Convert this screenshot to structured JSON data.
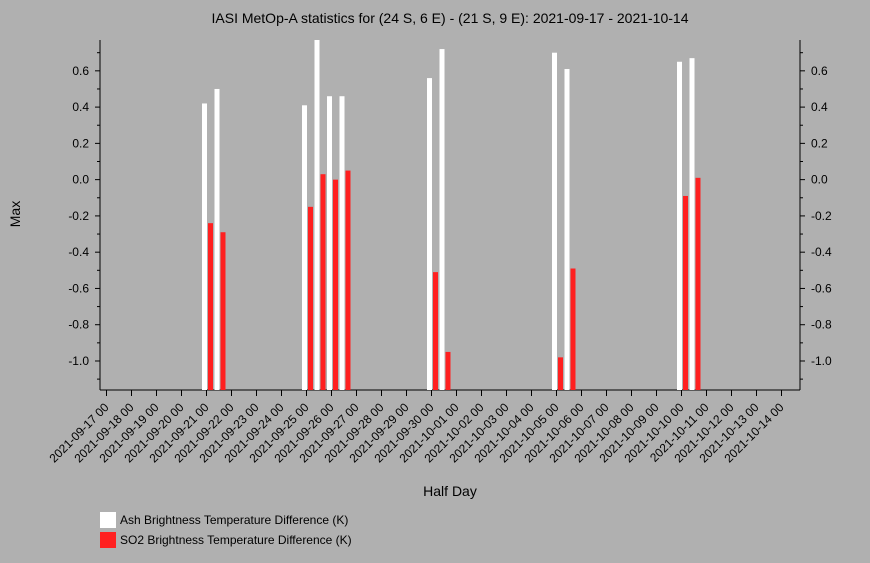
{
  "chart_data": {
    "type": "bar",
    "title": "IASI MetOp-A statistics for (24 S, 6 E) - (21 S, 9 E): 2021-09-17 - 2021-10-14",
    "xlabel": "Half Day",
    "ylabel": "Max",
    "ylim": [
      -1.16,
      0.77
    ],
    "yticks": [
      -1.0,
      -0.8,
      -0.6,
      -0.4,
      -0.2,
      0.0,
      0.2,
      0.4,
      0.6
    ],
    "ytick_labels": [
      "-1.0",
      "-0.8",
      "-0.6",
      "-0.4",
      "-0.2",
      "0.0",
      "0.2",
      "0.4",
      "0.6"
    ],
    "grid": false,
    "legend_position": "bottom-left",
    "categories": [
      "2021-09-17 00",
      "2021-09-18 00",
      "2021-09-19 00",
      "2021-09-20 00",
      "2021-09-21 00",
      "2021-09-22 00",
      "2021-09-23 00",
      "2021-09-24 00",
      "2021-09-25 00",
      "2021-09-26 00",
      "2021-09-27 00",
      "2021-09-28 00",
      "2021-09-29 00",
      "2021-09-30 00",
      "2021-10-01 00",
      "2021-10-02 00",
      "2021-10-03 00",
      "2021-10-04 00",
      "2021-10-05 00",
      "2021-10-06 00",
      "2021-10-07 00",
      "2021-10-08 00",
      "2021-10-09 00",
      "2021-10-10 00",
      "2021-10-11 00",
      "2021-10-12 00",
      "2021-10-13 00",
      "2021-10-14 00"
    ],
    "series": [
      {
        "name": "Ash Brightness Temperature Difference (K)",
        "color": "#ffffff",
        "points": [
          {
            "x": "2021-09-21 00",
            "y": 0.42
          },
          {
            "x": "2021-09-21 12",
            "y": 0.5
          },
          {
            "x": "2021-09-25 00",
            "y": 0.41
          },
          {
            "x": "2021-09-25 12",
            "y": 0.77
          },
          {
            "x": "2021-09-26 00",
            "y": 0.46
          },
          {
            "x": "2021-09-26 12",
            "y": 0.46
          },
          {
            "x": "2021-09-30 00",
            "y": 0.56
          },
          {
            "x": "2021-09-30 12",
            "y": 0.72
          },
          {
            "x": "2021-10-05 00",
            "y": 0.7
          },
          {
            "x": "2021-10-05 12",
            "y": 0.61
          },
          {
            "x": "2021-10-10 00",
            "y": 0.65
          },
          {
            "x": "2021-10-10 12",
            "y": 0.67
          }
        ]
      },
      {
        "name": "SO2 Brightness Temperature Difference (K)",
        "color": "#ff2020",
        "points": [
          {
            "x": "2021-09-21 00",
            "y": -0.24
          },
          {
            "x": "2021-09-21 12",
            "y": -0.29
          },
          {
            "x": "2021-09-25 00",
            "y": -0.15
          },
          {
            "x": "2021-09-25 12",
            "y": 0.03
          },
          {
            "x": "2021-09-26 00",
            "y": 0.0
          },
          {
            "x": "2021-09-26 12",
            "y": 0.05
          },
          {
            "x": "2021-09-30 00",
            "y": -0.51
          },
          {
            "x": "2021-09-30 12",
            "y": -0.95
          },
          {
            "x": "2021-10-05 00",
            "y": -0.98
          },
          {
            "x": "2021-10-05 12",
            "y": -0.49
          },
          {
            "x": "2021-10-10 00",
            "y": -0.09
          },
          {
            "x": "2021-10-10 12",
            "y": 0.01
          }
        ]
      }
    ]
  }
}
